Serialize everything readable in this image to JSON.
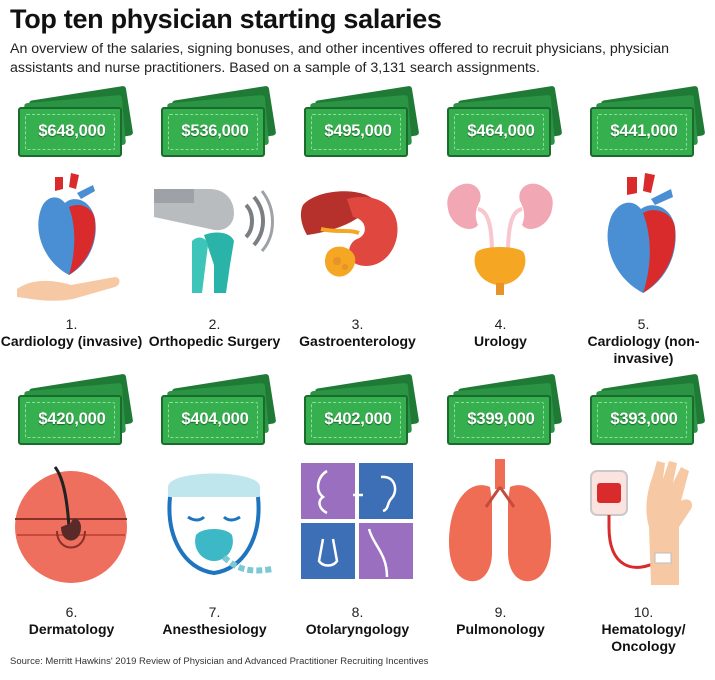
{
  "title": "Top ten physician starting salaries",
  "subtitle": "An overview of the salaries, signing bonuses, and other incentives offered to recruit physicians, physician assistants and nurse practitioners. Based on a sample of 3,131 search assignments.",
  "source": "Source: Merritt Hawkins' 2019 Review of Physician and Advanced Practitioner Recruiting Incentives",
  "items": [
    {
      "rank": "1.",
      "specialty": "Cardiology (invasive)",
      "salary": "$648,000",
      "icon": "heart-in-hand-icon"
    },
    {
      "rank": "2.",
      "specialty": "Orthopedic Surgery",
      "salary": "$536,000",
      "icon": "knee-joint-icon"
    },
    {
      "rank": "3.",
      "specialty": "Gastroenterology",
      "salary": "$495,000",
      "icon": "digestive-organs-icon"
    },
    {
      "rank": "4.",
      "specialty": "Urology",
      "salary": "$464,000",
      "icon": "kidneys-bladder-icon"
    },
    {
      "rank": "5.",
      "specialty": "Cardiology (non-invasive)",
      "salary": "$441,000",
      "icon": "heart-icon"
    },
    {
      "rank": "6.",
      "specialty": "Dermatology",
      "salary": "$420,000",
      "icon": "skin-hair-follicle-icon"
    },
    {
      "rank": "7.",
      "specialty": "Anesthesiology",
      "salary": "$404,000",
      "icon": "anesthesia-mask-icon"
    },
    {
      "rank": "8.",
      "specialty": "Otolaryngology",
      "salary": "$402,000",
      "icon": "ear-nose-throat-icon"
    },
    {
      "rank": "9.",
      "specialty": "Pulmonology",
      "salary": "$399,000",
      "icon": "lungs-icon"
    },
    {
      "rank": "10.",
      "specialty": "Hematology/ Oncology",
      "salary": "$393,000",
      "icon": "iv-blood-bag-hand-icon"
    }
  ],
  "colors": {
    "money_light": "#36b04f",
    "money_dark": "#1f7a35",
    "heart_red": "#d92b2b",
    "heart_blue": "#4a8fd4",
    "organ_red": "#e0473e",
    "kidney_pink": "#f2a7b4",
    "bladder_orange": "#f5a623",
    "skin_coral": "#ee6f5e",
    "mask_teal": "#3cb8c6",
    "ent_purple": "#9a6fbf",
    "ent_blue": "#3d6fb6",
    "lung_coral": "#ef6c55",
    "skin_tone": "#f6c9a4"
  }
}
